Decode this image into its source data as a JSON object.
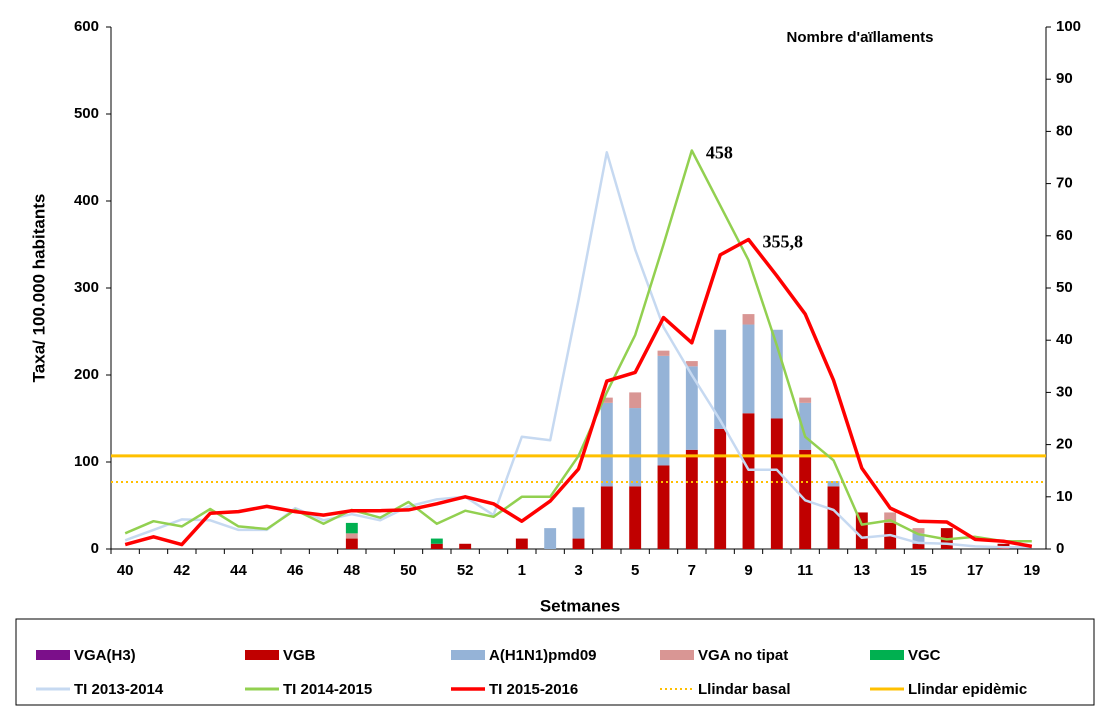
{
  "chart_data": {
    "type": "combo",
    "y_label": "Taxa/ 100.000 habitants",
    "y2_label": "Nombre d'aïllaments",
    "x_label": "Setmanes",
    "categories": [
      40,
      null,
      42,
      null,
      44,
      null,
      46,
      null,
      48,
      null,
      50,
      null,
      52,
      null,
      1,
      null,
      3,
      null,
      5,
      null,
      7,
      null,
      9,
      null,
      11,
      null,
      13,
      null,
      15,
      null,
      17,
      null,
      19
    ],
    "ylim": [
      0,
      600
    ],
    "yticks": [
      0,
      100,
      200,
      300,
      400,
      500,
      600
    ],
    "y2lim": [
      0,
      100
    ],
    "y2ticks": [
      0,
      10,
      20,
      30,
      40,
      50,
      60,
      70,
      80,
      90,
      100
    ],
    "grid": false,
    "legend": "bottom",
    "series": [
      {
        "name": "VGA(H3)",
        "kind": "bar",
        "axis": "y2",
        "color": "#7b0f8a",
        "values": [
          0,
          0,
          0,
          0,
          0,
          0,
          0,
          0,
          0,
          0,
          0,
          0,
          0,
          0,
          0,
          0,
          0,
          0,
          0,
          0,
          0,
          0,
          0,
          0,
          0,
          0,
          0,
          0,
          0,
          0,
          0,
          0,
          0
        ]
      },
      {
        "name": "VGB",
        "kind": "bar",
        "axis": "y2",
        "color": "#c00000",
        "values": [
          0,
          0,
          0,
          0,
          0,
          0,
          0,
          0,
          2,
          0,
          0,
          1,
          1,
          0,
          2,
          0,
          2,
          12,
          12,
          16,
          19,
          23,
          26,
          25,
          19,
          12,
          7,
          5,
          1,
          4,
          0,
          1,
          0
        ]
      },
      {
        "name": "A(H1N1)pmd09",
        "kind": "bar",
        "axis": "y2",
        "color": "#95b3d7",
        "values": [
          0,
          0,
          0,
          0,
          0,
          0,
          0,
          0,
          0,
          0,
          0,
          0,
          0,
          0,
          0,
          4,
          6,
          16,
          15,
          21,
          16,
          19,
          17,
          17,
          9,
          1,
          0,
          0,
          2,
          0,
          0,
          0,
          0
        ]
      },
      {
        "name": "VGA no tipat",
        "kind": "bar",
        "axis": "y2",
        "color": "#d99694",
        "values": [
          0,
          0,
          0,
          0,
          0,
          0,
          0,
          0,
          1,
          0,
          0,
          0,
          0,
          0,
          0,
          0,
          0,
          1,
          3,
          1,
          1,
          0,
          2,
          0,
          1,
          0,
          0,
          2,
          1,
          0,
          0,
          0,
          0
        ]
      },
      {
        "name": "VGC",
        "kind": "bar",
        "axis": "y2",
        "color": "#00b050",
        "values": [
          0,
          0,
          0,
          0,
          0,
          0,
          0,
          0,
          2,
          0,
          0,
          1,
          0,
          0,
          0,
          0,
          0,
          0,
          0,
          0,
          0,
          0,
          0,
          0,
          0,
          0,
          0,
          0,
          0,
          0,
          0,
          0,
          0
        ]
      },
      {
        "name": "TI 2013-2014",
        "kind": "line",
        "color": "#c6d9f1",
        "values": [
          10,
          22,
          34,
          33,
          22,
          22,
          47,
          33,
          40,
          33,
          49,
          57,
          60,
          39,
          129,
          125,
          286,
          456,
          344,
          255,
          200,
          148,
          91,
          91,
          56,
          45,
          13,
          16,
          7,
          6,
          3,
          2,
          2
        ]
      },
      {
        "name": "TI 2014-2015",
        "kind": "line",
        "color": "#92d050",
        "values": [
          18,
          32,
          26,
          46,
          26,
          23,
          45,
          29,
          45,
          36,
          54,
          29,
          44,
          37,
          60,
          60,
          107,
          180,
          246,
          350,
          458,
          395,
          332,
          234,
          129,
          102,
          28,
          33,
          17,
          11,
          14,
          9,
          9
        ],
        "value_labels": [
          null,
          null,
          null,
          null,
          null,
          null,
          null,
          null,
          null,
          null,
          null,
          null,
          null,
          null,
          null,
          null,
          null,
          null,
          null,
          null,
          "458",
          null,
          null,
          null,
          null,
          null,
          null,
          null,
          null,
          null,
          null,
          null,
          null
        ]
      },
      {
        "name": "TI 2015-2016",
        "kind": "line",
        "color": "#ff0000",
        "values": [
          5,
          14,
          5,
          41,
          43,
          49,
          43,
          39,
          44,
          44,
          45,
          52,
          60,
          52,
          32,
          55,
          92,
          193,
          203,
          266,
          237,
          338,
          355.8,
          314,
          270,
          194,
          93,
          47,
          32,
          31,
          11,
          9,
          3
        ],
        "value_labels": [
          null,
          null,
          null,
          null,
          null,
          null,
          null,
          null,
          null,
          null,
          null,
          null,
          null,
          null,
          null,
          null,
          null,
          null,
          null,
          null,
          null,
          null,
          "355,8",
          null,
          null,
          null,
          null,
          null,
          null,
          null,
          null,
          null,
          null
        ]
      },
      {
        "name": "Llindar basal",
        "kind": "hline",
        "dashed": true,
        "color": "#ffc000",
        "value": 77
      },
      {
        "name": "Llindar epidèmic",
        "kind": "hline",
        "dashed": false,
        "color": "#ffc000",
        "value": 107
      }
    ]
  }
}
